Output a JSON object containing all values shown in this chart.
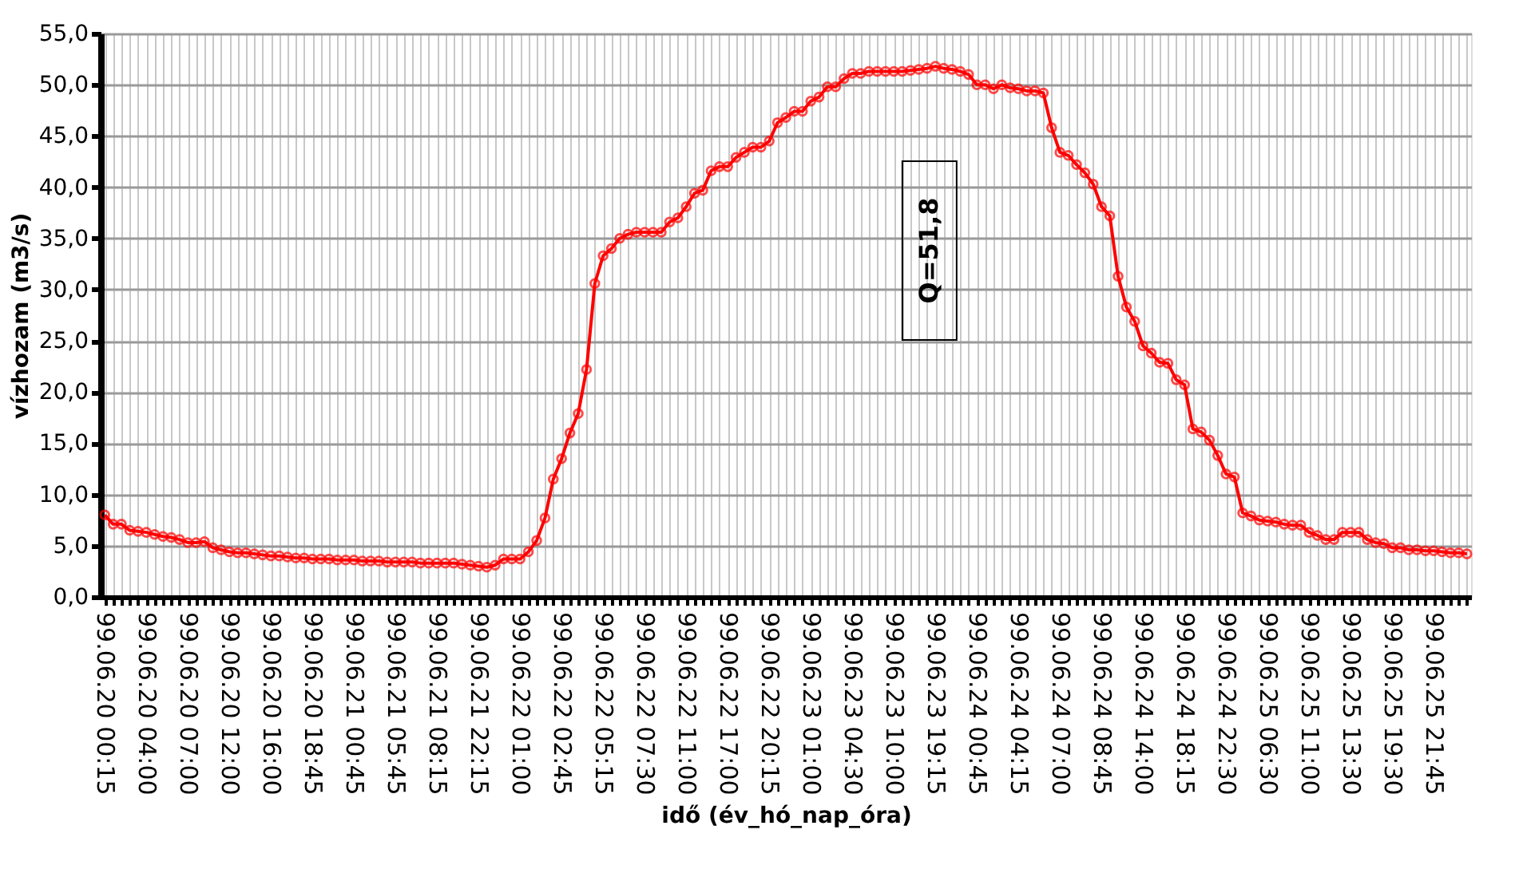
{
  "chart_data": {
    "type": "line",
    "xlabel": "idő (év_hó_nap_óra)",
    "ylabel": "vízhozam (m3/s)",
    "annotations": [
      "Q=51,8"
    ],
    "categories": [
      "99.06.20 00:15",
      null,
      null,
      null,
      null,
      "99.06.20 04:00",
      null,
      null,
      null,
      null,
      "99.06.20 07:00",
      null,
      null,
      null,
      null,
      "99.06.20 12:00",
      null,
      null,
      null,
      null,
      "99.06.20 16:00",
      null,
      null,
      null,
      null,
      "99.06.20 18:45",
      null,
      null,
      null,
      null,
      "99.06.21 00:45",
      null,
      null,
      null,
      null,
      "99.06.21 05:45",
      null,
      null,
      null,
      null,
      "99.06.21 08:15",
      null,
      null,
      null,
      null,
      "99.06.21 22:15",
      null,
      null,
      null,
      null,
      "99.06.22 01:00",
      null,
      null,
      null,
      null,
      "99.06.22 02:45",
      null,
      null,
      null,
      null,
      "99.06.22 05:15",
      null,
      null,
      null,
      null,
      "99.06.22 07:30",
      null,
      null,
      null,
      null,
      "99.06.22 11:00",
      null,
      null,
      null,
      null,
      "99.06.22 17:00",
      null,
      null,
      null,
      null,
      "99.06.22 20:15",
      null,
      null,
      null,
      null,
      "99.06.23 01:00",
      null,
      null,
      null,
      null,
      "99.06.23 04:30",
      null,
      null,
      null,
      null,
      "99.06.23 10:00",
      null,
      null,
      null,
      null,
      "99.06.23 19:15",
      null,
      null,
      null,
      null,
      "99.06.24 00:45",
      null,
      null,
      null,
      null,
      "99.06.24 04:15",
      null,
      null,
      null,
      null,
      "99.06.24 07:00",
      null,
      null,
      null,
      null,
      "99.06.24 08:45",
      null,
      null,
      null,
      null,
      "99.06.24 14:00",
      null,
      null,
      null,
      null,
      "99.06.24 18:15",
      null,
      null,
      null,
      null,
      "99.06.24 22:30",
      null,
      null,
      null,
      null,
      "99.06.25 06:30",
      null,
      null,
      null,
      null,
      "99.06.25 11:00",
      null,
      null,
      null,
      null,
      "99.06.25 13:30",
      null,
      null,
      null,
      null,
      "99.06.25 19:30",
      null,
      null,
      null,
      null,
      "99.06.25 21:45",
      null,
      null,
      null,
      null
    ],
    "series": [
      {
        "color": "#ff0000",
        "values": [
          8.0,
          7.1,
          7.1,
          6.5,
          6.4,
          6.3,
          6.1,
          5.9,
          5.8,
          5.6,
          5.3,
          5.3,
          5.4,
          4.8,
          4.6,
          4.4,
          4.3,
          4.3,
          4.2,
          4.1,
          4.0,
          4.0,
          3.9,
          3.8,
          3.8,
          3.7,
          3.7,
          3.7,
          3.6,
          3.6,
          3.6,
          3.5,
          3.5,
          3.5,
          3.4,
          3.4,
          3.4,
          3.4,
          3.3,
          3.3,
          3.3,
          3.3,
          3.3,
          3.2,
          3.1,
          3.0,
          2.9,
          3.1,
          3.7,
          3.7,
          3.7,
          4.4,
          5.5,
          7.7,
          11.5,
          13.5,
          16.0,
          17.9,
          22.2,
          30.6,
          33.3,
          34.0,
          35.0,
          35.4,
          35.6,
          35.6,
          35.6,
          35.6,
          36.6,
          37.0,
          38.1,
          39.4,
          39.7,
          41.6,
          42.0,
          42.0,
          42.9,
          43.4,
          43.9,
          43.9,
          44.5,
          46.3,
          46.8,
          47.4,
          47.4,
          48.4,
          48.8,
          49.8,
          49.8,
          50.6,
          51.1,
          51.1,
          51.3,
          51.3,
          51.3,
          51.3,
          51.3,
          51.4,
          51.5,
          51.6,
          51.8,
          51.6,
          51.5,
          51.3,
          51.0,
          50.0,
          50.0,
          49.6,
          50.0,
          49.7,
          49.6,
          49.4,
          49.4,
          49.2,
          45.8,
          43.4,
          43.1,
          42.2,
          41.4,
          40.3,
          38.1,
          37.2,
          31.3,
          28.3,
          26.9,
          24.5,
          23.8,
          22.9,
          22.8,
          21.2,
          20.7,
          16.4,
          16.1,
          15.3,
          13.8,
          12.0,
          11.7,
          8.2,
          7.9,
          7.5,
          7.4,
          7.3,
          7.1,
          7.0,
          7.0,
          6.3,
          6.0,
          5.6,
          5.6,
          6.3,
          6.3,
          6.3,
          5.6,
          5.3,
          5.2,
          4.8,
          4.8,
          4.6,
          4.6,
          4.5,
          4.5,
          4.4,
          4.3,
          4.3,
          4.2
        ]
      }
    ],
    "ylim": [
      0,
      55
    ],
    "yticks": [
      {
        "value": 0,
        "label": "0,0"
      },
      {
        "value": 5,
        "label": "5,0"
      },
      {
        "value": 10,
        "label": "10,0"
      },
      {
        "value": 15,
        "label": "15,0"
      },
      {
        "value": 20,
        "label": "20,0"
      },
      {
        "value": 25,
        "label": "25,0"
      },
      {
        "value": 30,
        "label": "30,0"
      },
      {
        "value": 35,
        "label": "35,0"
      },
      {
        "value": 40,
        "label": "40,0"
      },
      {
        "value": 45,
        "label": "45,0"
      },
      {
        "value": 50,
        "label": "50,0"
      },
      {
        "value": 55,
        "label": "55,0"
      }
    ],
    "grid": true,
    "marker": "circle",
    "line_style": "solid",
    "legend": false
  }
}
